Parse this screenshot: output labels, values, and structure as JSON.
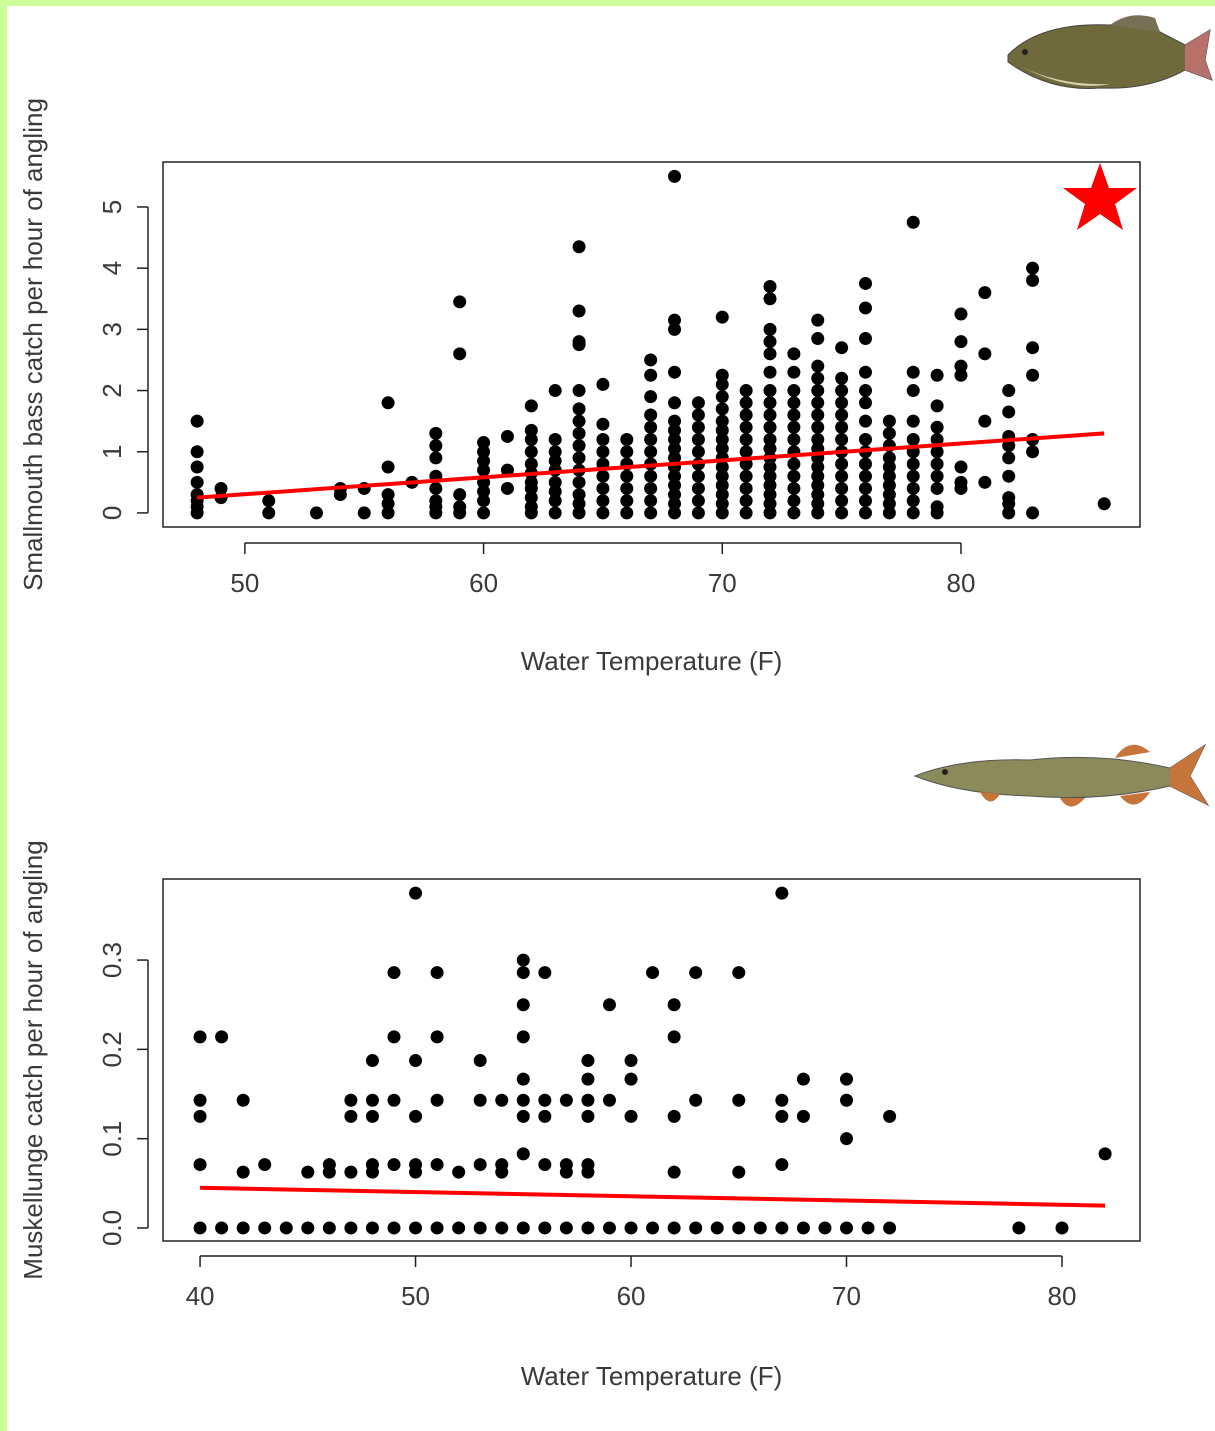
{
  "chart_data": [
    {
      "type": "scatter",
      "y_label": "Smallmouth bass catch per hour of angling",
      "x_label": "Water Temperature (F)",
      "color": "#000000",
      "xlim": [
        46.57,
        87.5
      ],
      "ylim": [
        -0.23,
        5.735
      ],
      "xticks": [
        50,
        60,
        70,
        80
      ],
      "yticks": [
        0,
        1,
        2,
        3,
        4,
        5
      ],
      "x": [
        48,
        48,
        48,
        48,
        48,
        48,
        48,
        48,
        49,
        49,
        51,
        51,
        53,
        54,
        54,
        55,
        55,
        56,
        56,
        56,
        56,
        56,
        57,
        58,
        58,
        58,
        58,
        58,
        58,
        58,
        58,
        59,
        59,
        59,
        59,
        59,
        60,
        60,
        60,
        60,
        60,
        60,
        60,
        60,
        61,
        61,
        61,
        62,
        62,
        62,
        62,
        62,
        62,
        62,
        62,
        62,
        62,
        62,
        63,
        63,
        63,
        63,
        63,
        63,
        63,
        63,
        63,
        64,
        64,
        64,
        64,
        64,
        64,
        64,
        64,
        64,
        64,
        64,
        64,
        64,
        64,
        64,
        65,
        65,
        65,
        65,
        65,
        65,
        65,
        65,
        65,
        66,
        66,
        66,
        66,
        66,
        66,
        66,
        67,
        67,
        67,
        67,
        67,
        67,
        67,
        67,
        67,
        67,
        67,
        67,
        68,
        68,
        68,
        68,
        68,
        68,
        68,
        68,
        68,
        68,
        68,
        68,
        68,
        68,
        68,
        68,
        69,
        69,
        69,
        69,
        69,
        69,
        69,
        69,
        69,
        69,
        70,
        70,
        70,
        70,
        70,
        70,
        70,
        70,
        70,
        70,
        70,
        70,
        70,
        70,
        70,
        70,
        71,
        71,
        71,
        71,
        71,
        71,
        71,
        71,
        71,
        71,
        71,
        72,
        72,
        72,
        72,
        72,
        72,
        72,
        72,
        72,
        72,
        72,
        72,
        72,
        72,
        72,
        72,
        72,
        72,
        72,
        73,
        73,
        73,
        73,
        73,
        73,
        73,
        73,
        73,
        73,
        73,
        73,
        73,
        74,
        74,
        74,
        74,
        74,
        74,
        74,
        74,
        74,
        74,
        74,
        74,
        74,
        74,
        74,
        74,
        74,
        75,
        75,
        75,
        75,
        75,
        75,
        75,
        75,
        75,
        75,
        75,
        75,
        75,
        76,
        76,
        76,
        76,
        76,
        76,
        76,
        76,
        76,
        76,
        76,
        76,
        76,
        76,
        77,
        77,
        77,
        77,
        77,
        77,
        77,
        77,
        77,
        77,
        78,
        78,
        78,
        78,
        78,
        78,
        78,
        78,
        78,
        78,
        78,
        79,
        79,
        79,
        79,
        79,
        79,
        79,
        79,
        79,
        79,
        80,
        80,
        80,
        80,
        80,
        80,
        80,
        81,
        81,
        81,
        81,
        82,
        82,
        82,
        82,
        82,
        82,
        82,
        82,
        82,
        83,
        83,
        83,
        83,
        83,
        83,
        83,
        86
      ],
      "values": [
        0,
        0.1,
        0.2,
        0.3,
        0.5,
        0.75,
        1.0,
        1.5,
        0.25,
        0.4,
        0,
        0.2,
        0,
        0.3,
        0.4,
        0,
        0.4,
        0,
        0.15,
        0.3,
        0.75,
        1.8,
        0.5,
        0,
        0.1,
        0.2,
        0.4,
        0.6,
        0.9,
        1.1,
        1.3,
        0,
        0.1,
        0.3,
        2.6,
        3.45,
        0,
        0.2,
        0.35,
        0.5,
        0.7,
        0.85,
        1.0,
        1.15,
        0.4,
        0.7,
        1.25,
        0,
        0.1,
        0.25,
        0.4,
        0.5,
        0.65,
        0.8,
        1.0,
        1.2,
        1.35,
        1.75,
        0,
        0.2,
        0.35,
        0.5,
        0.7,
        0.85,
        1.0,
        1.2,
        2.0,
        0,
        0.15,
        0.3,
        0.5,
        0.7,
        0.9,
        1.1,
        1.3,
        1.5,
        1.7,
        2.0,
        2.75,
        2.8,
        3.3,
        4.35,
        0,
        0.2,
        0.4,
        0.6,
        0.8,
        1.0,
        1.2,
        1.45,
        2.1,
        0,
        0.2,
        0.4,
        0.6,
        0.8,
        1.0,
        1.2,
        0,
        0.2,
        0.4,
        0.6,
        0.8,
        1.0,
        1.2,
        1.4,
        1.6,
        1.9,
        2.25,
        2.5,
        0,
        0.15,
        0.3,
        0.45,
        0.6,
        0.75,
        0.9,
        1.05,
        1.2,
        1.35,
        1.5,
        1.8,
        2.3,
        3.0,
        3.15,
        5.5,
        0,
        0.2,
        0.4,
        0.6,
        0.8,
        1.0,
        1.2,
        1.4,
        1.6,
        1.8,
        0,
        0.15,
        0.3,
        0.45,
        0.6,
        0.75,
        0.9,
        1.05,
        1.2,
        1.35,
        1.5,
        1.7,
        1.9,
        2.1,
        2.25,
        3.2,
        0,
        0.2,
        0.4,
        0.6,
        0.8,
        1.0,
        1.2,
        1.4,
        1.6,
        1.8,
        2.0,
        0,
        0.15,
        0.3,
        0.45,
        0.6,
        0.75,
        0.9,
        1.05,
        1.2,
        1.4,
        1.6,
        1.8,
        2.0,
        2.3,
        2.6,
        2.8,
        3.0,
        3.5,
        3.7,
        0,
        0.2,
        0.4,
        0.6,
        0.8,
        1.0,
        1.2,
        1.4,
        1.6,
        1.8,
        2.0,
        2.3,
        2.6,
        0,
        0.15,
        0.3,
        0.45,
        0.6,
        0.75,
        0.9,
        1.05,
        1.2,
        1.4,
        1.6,
        1.8,
        2.0,
        2.2,
        2.4,
        2.85,
        3.15,
        0,
        0.2,
        0.4,
        0.6,
        0.8,
        1.0,
        1.2,
        1.4,
        1.6,
        1.8,
        2.0,
        2.2,
        2.7,
        0,
        0.2,
        0.4,
        0.6,
        0.8,
        1.0,
        1.2,
        1.5,
        1.8,
        2.0,
        2.3,
        2.85,
        3.35,
        3.75,
        0,
        0.15,
        0.3,
        0.45,
        0.6,
        0.75,
        0.9,
        1.1,
        1.3,
        1.5,
        0,
        0.2,
        0.4,
        0.6,
        0.8,
        1.0,
        1.2,
        1.5,
        2.0,
        2.3,
        4.75,
        0,
        0.1,
        0.4,
        0.6,
        0.8,
        1.0,
        1.2,
        1.4,
        1.75,
        2.25,
        0.4,
        0.5,
        0.75,
        2.25,
        2.4,
        2.8,
        3.25,
        0.5,
        1.5,
        2.6,
        3.6,
        0,
        0.15,
        0.25,
        0.6,
        0.9,
        1.1,
        1.25,
        1.65,
        2.0,
        0,
        1.0,
        1.2,
        2.25,
        2.7,
        3.8,
        4.0,
        0.15
      ],
      "trend": {
        "x": [
          48,
          86
        ],
        "values": [
          0.25,
          1.3
        ],
        "color": "#ff0000"
      }
    },
    {
      "type": "scatter",
      "y_label": "Muskellunge catch per hour of angling",
      "x_label": "Water Temperature (F)",
      "color": "#000000",
      "xlim": [
        38.28,
        83.62
      ],
      "ylim": [
        -0.0146,
        0.3908
      ],
      "xticks": [
        40,
        50,
        60,
        70,
        80
      ],
      "yticks": [
        {
          "value": 0,
          "label": "0.0"
        },
        0.1,
        0.2,
        0.3
      ],
      "x": [
        40,
        41,
        42,
        43,
        44,
        45,
        46,
        47,
        48,
        49,
        50,
        51,
        52,
        53,
        54,
        55,
        56,
        57,
        58,
        59,
        60,
        61,
        62,
        63,
        64,
        65,
        66,
        67,
        68,
        69,
        70,
        71,
        72,
        78,
        80,
        40,
        40,
        40,
        40,
        41,
        42,
        42,
        43,
        45,
        46,
        46,
        47,
        47,
        47,
        48,
        48,
        48,
        48,
        48,
        49,
        49,
        49,
        49,
        50,
        50,
        50,
        50,
        50,
        51,
        51,
        51,
        51,
        52,
        53,
        53,
        53,
        54,
        54,
        54,
        55,
        55,
        55,
        55,
        55,
        55,
        55,
        55,
        56,
        56,
        56,
        56,
        57,
        57,
        57,
        58,
        58,
        58,
        58,
        58,
        58,
        59,
        59,
        60,
        60,
        60,
        61,
        62,
        62,
        62,
        62,
        63,
        63,
        65,
        65,
        65,
        67,
        67,
        67,
        67,
        68,
        68,
        70,
        70,
        70,
        72,
        82
      ],
      "values": [
        0,
        0,
        0,
        0,
        0,
        0,
        0,
        0,
        0,
        0,
        0,
        0,
        0,
        0,
        0,
        0,
        0,
        0,
        0,
        0,
        0,
        0,
        0,
        0,
        0,
        0,
        0,
        0,
        0,
        0,
        0,
        0,
        0,
        0,
        0,
        0.214,
        0.143,
        0.125,
        0.071,
        0.214,
        0.143,
        0.0625,
        0.071,
        0.0625,
        0.0625,
        0.071,
        0.143,
        0.125,
        0.0625,
        0.1875,
        0.143,
        0.125,
        0.071,
        0.0625,
        0.286,
        0.214,
        0.143,
        0.071,
        0.375,
        0.1875,
        0.125,
        0.071,
        0.0625,
        0.286,
        0.214,
        0.143,
        0.071,
        0.0625,
        0.1875,
        0.143,
        0.071,
        0.143,
        0.071,
        0.0625,
        0.3,
        0.286,
        0.25,
        0.214,
        0.1667,
        0.143,
        0.125,
        0.083,
        0.286,
        0.143,
        0.125,
        0.071,
        0.143,
        0.071,
        0.0625,
        0.1875,
        0.1667,
        0.143,
        0.125,
        0.071,
        0.0625,
        0.25,
        0.143,
        0.1875,
        0.1667,
        0.125,
        0.286,
        0.25,
        0.214,
        0.125,
        0.0625,
        0.286,
        0.143,
        0.286,
        0.143,
        0.0625,
        0.375,
        0.143,
        0.125,
        0.071,
        0.1667,
        0.125,
        0.1667,
        0.143,
        0.1,
        0.125,
        0.083
      ],
      "trend": {
        "x": [
          40,
          82
        ],
        "values": [
          0.045,
          0.025
        ],
        "color": "#ff0000"
      }
    }
  ]
}
